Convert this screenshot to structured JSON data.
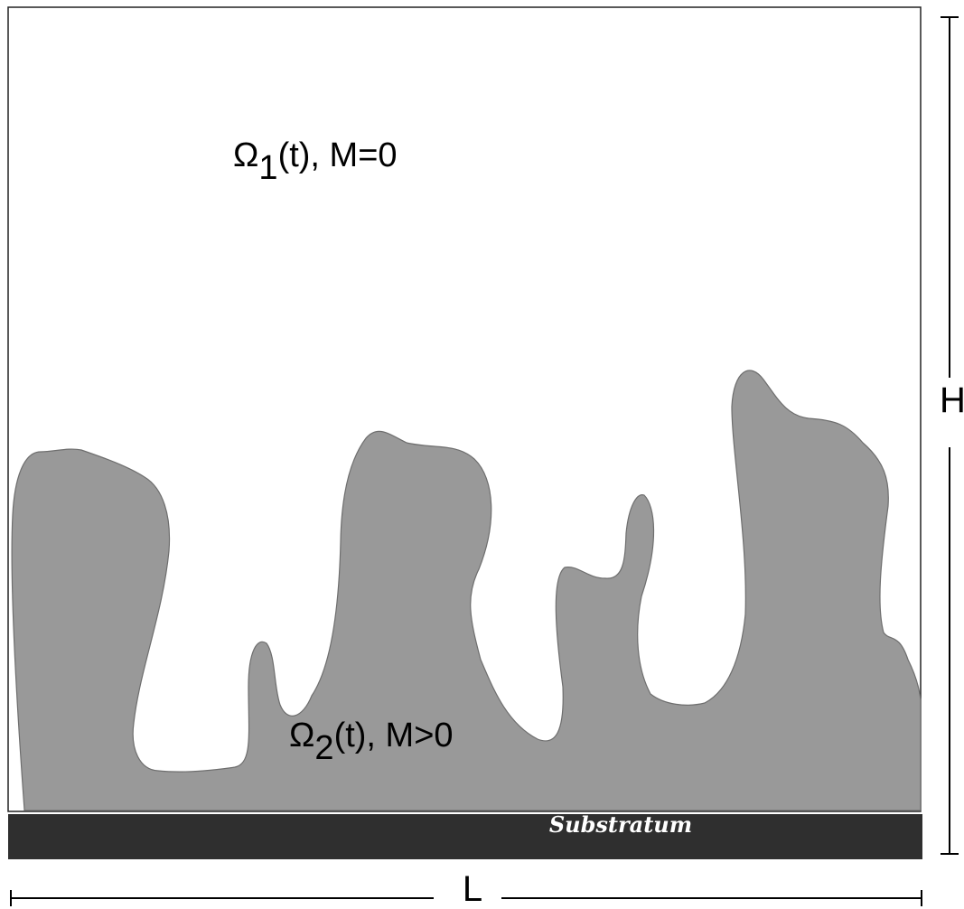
{
  "domain_labels": {
    "omega1": {
      "symbol": "Ω",
      "subscript": "1",
      "suffix": "(t), M=0"
    },
    "omega2": {
      "symbol": "Ω",
      "subscript": "2",
      "suffix": "(t), M>0"
    }
  },
  "substratum_label": "Substratum",
  "dimensions": {
    "height_label": "H",
    "length_label": "L"
  },
  "colors": {
    "background": "#ffffff",
    "frame": "#222222",
    "region_fill": "#999999",
    "region_stroke": "#6e6e6e",
    "substratum": "#2f2f2f",
    "text": "#000000"
  }
}
